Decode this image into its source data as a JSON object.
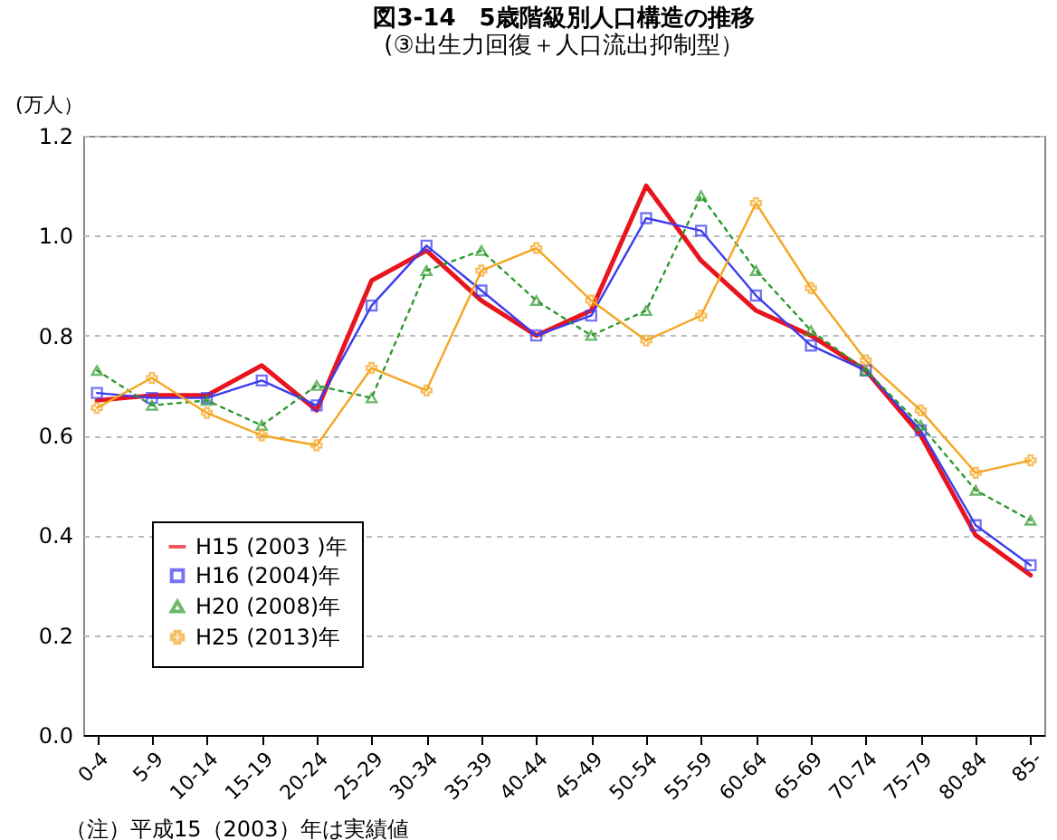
{
  "chart_data": {
    "type": "line",
    "title": "図3-14　5歳階級別人口構造の推移",
    "subtitle": "(③出生力回復＋人口流出抑制型）",
    "ylabel": "(万人）",
    "annotations": [
      "（注）平成15（2003）年は実績値"
    ],
    "categories": [
      "0-4",
      "5-9",
      "10-14",
      "15-19",
      "20-24",
      "25-29",
      "30-34",
      "35-39",
      "40-44",
      "45-49",
      "50-54",
      "55-59",
      "60-64",
      "65-69",
      "70-74",
      "75-79",
      "80-84",
      "85-"
    ],
    "ylim": [
      0,
      1.2
    ],
    "yticks": [
      {
        "value": 0,
        "label": "0.0"
      },
      {
        "value": 0.2,
        "label": "0.2"
      },
      {
        "value": 0.4,
        "label": "0.4"
      },
      {
        "value": 0.6,
        "label": "0.6"
      },
      {
        "value": 0.8,
        "label": "0.8"
      },
      {
        "value": 1.0,
        "label": "1.0"
      },
      {
        "value": 1.2,
        "label": "1.2"
      }
    ],
    "grid": "y",
    "legend": "bottom left",
    "series": [
      {
        "name": "H15 (2003 )年",
        "color": "#e8141e",
        "marker": "none",
        "line_style": "solid",
        "values": [
          0.67,
          0.68,
          0.68,
          0.74,
          0.65,
          0.91,
          0.97,
          0.87,
          0.8,
          0.85,
          1.1,
          0.95,
          0.85,
          0.8,
          0.73,
          0.6,
          0.4,
          0.32
        ]
      },
      {
        "name": "H16 (2004)年",
        "color": "#3c3cf0",
        "marker": "square",
        "line_style": "solid",
        "values": [
          0.685,
          0.675,
          0.675,
          0.71,
          0.66,
          0.86,
          0.98,
          0.89,
          0.8,
          0.84,
          1.035,
          1.01,
          0.88,
          0.78,
          0.73,
          0.61,
          0.42,
          0.34
        ]
      },
      {
        "name": "H20 (2008)年",
        "color": "#2e9a2e",
        "marker": "triangle",
        "line_style": "dotted",
        "values": [
          0.73,
          0.66,
          0.67,
          0.62,
          0.7,
          0.675,
          0.93,
          0.97,
          0.87,
          0.8,
          0.85,
          1.08,
          0.93,
          0.81,
          0.73,
          0.62,
          0.49,
          0.43
        ]
      },
      {
        "name": "H25 (2013)年",
        "color": "#f5a623",
        "marker": "cross",
        "line_style": "solid",
        "values": [
          0.655,
          0.715,
          0.645,
          0.6,
          0.58,
          0.735,
          0.69,
          0.93,
          0.975,
          0.87,
          0.79,
          0.84,
          1.065,
          0.895,
          0.75,
          0.65,
          0.525,
          0.55
        ]
      }
    ]
  }
}
